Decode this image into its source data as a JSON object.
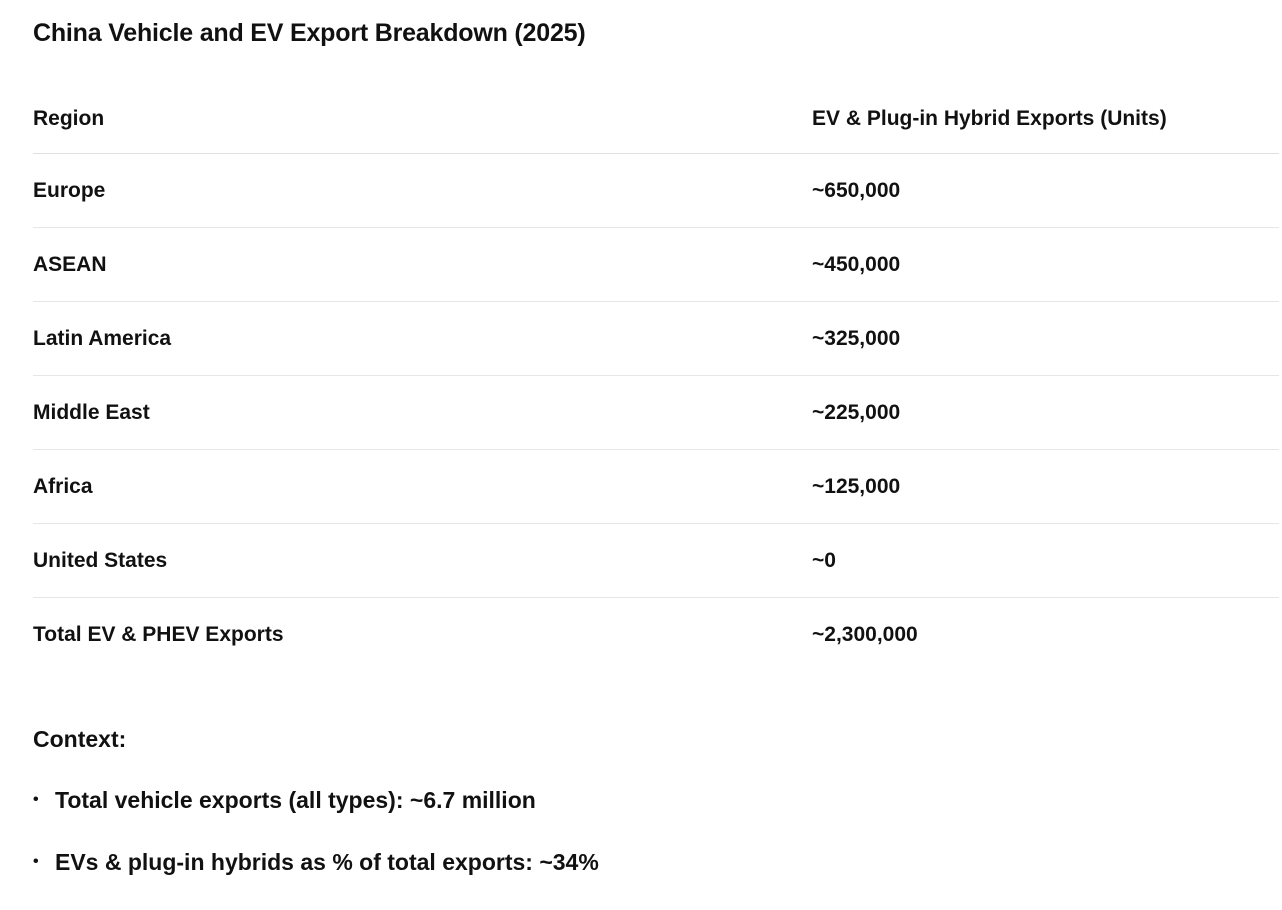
{
  "title": "China Vehicle and EV Export Breakdown (2025)",
  "table": {
    "headers": {
      "region": "Region",
      "exports": "EV & Plug-in Hybrid Exports (Units)"
    },
    "rows": [
      {
        "region": "Europe",
        "exports": "~650,000"
      },
      {
        "region": "ASEAN",
        "exports": "~450,000"
      },
      {
        "region": "Latin America",
        "exports": "~325,000"
      },
      {
        "region": "Middle East",
        "exports": "~225,000"
      },
      {
        "region": "Africa",
        "exports": "~125,000"
      },
      {
        "region": "United States",
        "exports": "~0"
      },
      {
        "region": "Total EV & PHEV Exports",
        "exports": "~2,300,000"
      }
    ]
  },
  "context": {
    "title": "Context:",
    "bullet_symbol": "•",
    "bullets": [
      "Total vehicle exports (all types): ~6.7 million",
      "EVs & plug-in hybrids as % of total exports: ~34%"
    ]
  }
}
